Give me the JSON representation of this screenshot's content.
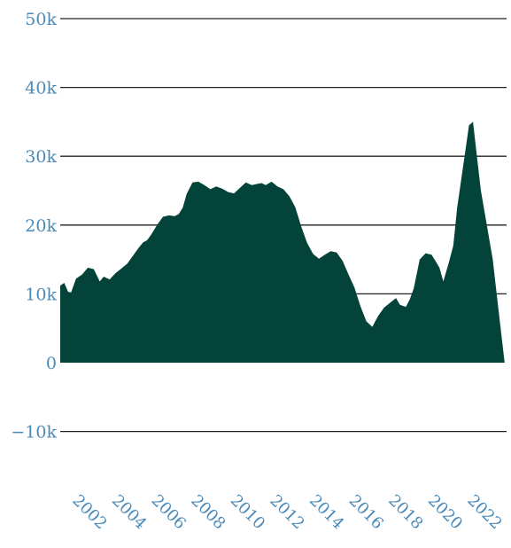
{
  "chart_data": {
    "type": "area",
    "title": "",
    "xlabel": "",
    "ylabel": "",
    "grid": true,
    "legend": "none",
    "xlim": [
      2000.8,
      2023.4
    ],
    "ylim": [
      -15000,
      50000
    ],
    "y_ticks": [
      {
        "value": 50000,
        "label": "50k"
      },
      {
        "value": 40000,
        "label": "40k"
      },
      {
        "value": 30000,
        "label": "30k"
      },
      {
        "value": 20000,
        "label": "20k"
      },
      {
        "value": 10000,
        "label": "10k"
      },
      {
        "value": 0,
        "label": "0"
      },
      {
        "value": -10000,
        "label": "−10k"
      }
    ],
    "x_ticks": [
      {
        "value": 2002,
        "label": "2002"
      },
      {
        "value": 2004,
        "label": "2004"
      },
      {
        "value": 2006,
        "label": "2006"
      },
      {
        "value": 2008,
        "label": "2008"
      },
      {
        "value": 2010,
        "label": "2010"
      },
      {
        "value": 2012,
        "label": "2012"
      },
      {
        "value": 2014,
        "label": "2014"
      },
      {
        "value": 2016,
        "label": "2016"
      },
      {
        "value": 2018,
        "label": "2018"
      },
      {
        "value": 2020,
        "label": "2020"
      },
      {
        "value": 2022,
        "label": "2022"
      }
    ],
    "colors": {
      "area": "#03433a",
      "tick_label": "#4a8ab8",
      "grid": "#222222"
    },
    "series": [
      {
        "x": [
          2000.8,
          2001.0,
          2001.2,
          2001.35,
          2001.6,
          2001.9,
          2002.2,
          2002.5,
          2002.8,
          2003.0,
          2003.3,
          2003.6,
          2003.9,
          2004.2,
          2004.5,
          2004.8,
          2005.0,
          2005.2,
          2005.4,
          2005.7,
          2006.0,
          2006.3,
          2006.6,
          2006.8,
          2007.0,
          2007.2,
          2007.5,
          2007.8,
          2008.1,
          2008.4,
          2008.7,
          2009.0,
          2009.3,
          2009.6,
          2009.9,
          2010.2,
          2010.5,
          2010.8,
          2011.0,
          2011.2,
          2011.5,
          2011.8,
          2012.1,
          2012.4,
          2012.7,
          2013.0,
          2013.3,
          2013.6,
          2013.9,
          2014.2,
          2014.5,
          2014.8,
          2015.1,
          2015.4,
          2015.7,
          2016.0,
          2016.3,
          2016.6,
          2016.9,
          2017.2,
          2017.5,
          2017.8,
          2018.0,
          2018.3,
          2018.5,
          2018.7,
          2019.0,
          2019.3,
          2019.6,
          2019.8,
          2020.0,
          2020.2,
          2020.5,
          2020.7,
          2020.9,
          2021.2,
          2021.5,
          2021.7,
          2021.9,
          2022.1,
          2022.4,
          2022.7,
          2022.9,
          2023.1,
          2023.3
        ],
        "values": [
          11200,
          11600,
          10300,
          10200,
          12200,
          12800,
          13800,
          13600,
          11800,
          12500,
          12100,
          13000,
          13700,
          14400,
          15600,
          16800,
          17500,
          17800,
          18600,
          20000,
          21200,
          21400,
          21300,
          21600,
          22500,
          24500,
          26200,
          26300,
          25800,
          25200,
          25600,
          25300,
          24800,
          24600,
          25400,
          26200,
          25800,
          26000,
          26100,
          25800,
          26300,
          25600,
          25200,
          24200,
          22600,
          19800,
          17400,
          15800,
          15100,
          15700,
          16200,
          16000,
          14800,
          12800,
          10900,
          8200,
          6000,
          5200,
          6800,
          8000,
          8700,
          9400,
          8400,
          8100,
          9200,
          10800,
          15000,
          15900,
          15700,
          14800,
          13800,
          11800,
          14800,
          17000,
          22500,
          28500,
          34500,
          35000,
          30000,
          25000,
          20000,
          15000,
          10000,
          5000,
          0
        ]
      }
    ]
  }
}
